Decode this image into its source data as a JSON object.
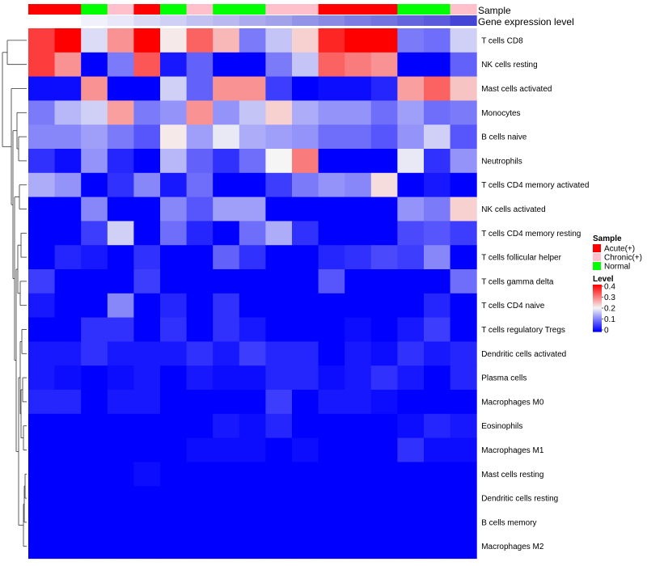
{
  "chart_data": {
    "type": "heatmap",
    "annotation_labels": {
      "sample": "Sample",
      "gene_level": "Gene expression level"
    },
    "sample_groups": [
      "Acute(+)",
      "Acute(+)",
      "Normal",
      "Chronic(+)",
      "Acute(+)",
      "Normal",
      "Chronic(+)",
      "Normal",
      "Normal",
      "Chronic(+)",
      "Chronic(+)",
      "Acute(+)",
      "Acute(+)",
      "Acute(+)",
      "Normal",
      "Normal",
      "Chronic(+)"
    ],
    "gene_expression_level": [
      0.0,
      0.0,
      0.03,
      0.05,
      0.08,
      0.1,
      0.13,
      0.15,
      0.18,
      0.2,
      0.23,
      0.25,
      0.28,
      0.3,
      0.33,
      0.35,
      0.4
    ],
    "rows": [
      "T cells CD8",
      "NK cells resting",
      "Mast cells activated",
      "Monocytes",
      "B cells naive",
      "Neutrophils",
      "T cells CD4 memory activated",
      "NK cells activated",
      "T cells CD4 memory resting",
      "T cells follicular helper",
      "T cells gamma delta",
      "T cells CD4 naive",
      "T cells regulatory  Tregs",
      "Dendritic cells activated",
      "Plasma cells",
      "Macrophages M0",
      "Eosinophils",
      "Macrophages M1",
      "Mast cells resting",
      "Dendritic cells resting",
      "B cells memory",
      "Macrophages M2"
    ],
    "values": [
      [
        0.35,
        0.4,
        0.18,
        0.28,
        0.4,
        0.21,
        0.32,
        0.25,
        0.1,
        0.16,
        0.23,
        0.37,
        0.4,
        0.4,
        0.1,
        0.09,
        0.17
      ],
      [
        0.35,
        0.28,
        0.0,
        0.1,
        0.33,
        0.02,
        0.08,
        0.0,
        0.0,
        0.1,
        0.16,
        0.32,
        0.3,
        0.28,
        0.0,
        0.0,
        0.08
      ],
      [
        0.01,
        0.01,
        0.28,
        0.0,
        0.0,
        0.17,
        0.08,
        0.28,
        0.28,
        0.05,
        0.0,
        0.01,
        0.01,
        0.03,
        0.27,
        0.32,
        0.24
      ],
      [
        0.1,
        0.15,
        0.17,
        0.27,
        0.1,
        0.12,
        0.28,
        0.12,
        0.16,
        0.23,
        0.14,
        0.12,
        0.12,
        0.09,
        0.13,
        0.09,
        0.1
      ],
      [
        0.11,
        0.11,
        0.13,
        0.1,
        0.07,
        0.21,
        0.13,
        0.19,
        0.14,
        0.13,
        0.12,
        0.09,
        0.09,
        0.07,
        0.12,
        0.17,
        0.07
      ],
      [
        0.04,
        0.01,
        0.12,
        0.03,
        0.0,
        0.15,
        0.08,
        0.04,
        0.09,
        0.2,
        0.3,
        0.0,
        0.0,
        0.0,
        0.19,
        0.04,
        0.12
      ],
      [
        0.14,
        0.12,
        0.0,
        0.04,
        0.11,
        0.02,
        0.09,
        0.0,
        0.0,
        0.05,
        0.1,
        0.12,
        0.11,
        0.22,
        0.0,
        0.02,
        0.0
      ],
      [
        0.0,
        0.0,
        0.11,
        0.0,
        0.0,
        0.11,
        0.07,
        0.13,
        0.13,
        0.0,
        0.0,
        0.0,
        0.0,
        0.0,
        0.12,
        0.1,
        0.23
      ],
      [
        0.0,
        0.0,
        0.05,
        0.17,
        0.0,
        0.09,
        0.03,
        0.0,
        0.09,
        0.14,
        0.04,
        0.0,
        0.0,
        0.0,
        0.06,
        0.07,
        0.05
      ],
      [
        0.0,
        0.03,
        0.02,
        0.0,
        0.04,
        0.0,
        0.0,
        0.08,
        0.04,
        0.0,
        0.0,
        0.03,
        0.04,
        0.06,
        0.05,
        0.11,
        0.0
      ],
      [
        0.05,
        0.0,
        0.0,
        0.0,
        0.05,
        0.0,
        0.0,
        0.0,
        0.0,
        0.0,
        0.0,
        0.07,
        0.0,
        0.0,
        0.0,
        0.0,
        0.09
      ],
      [
        0.02,
        0.0,
        0.0,
        0.11,
        0.0,
        0.03,
        0.0,
        0.04,
        0.0,
        0.0,
        0.0,
        0.0,
        0.0,
        0.0,
        0.0,
        0.03,
        0.0
      ],
      [
        0.0,
        0.0,
        0.04,
        0.04,
        0.0,
        0.04,
        0.0,
        0.04,
        0.02,
        0.0,
        0.0,
        0.0,
        0.01,
        0.0,
        0.02,
        0.05,
        0.0
      ],
      [
        0.02,
        0.02,
        0.04,
        0.02,
        0.02,
        0.02,
        0.04,
        0.02,
        0.05,
        0.03,
        0.03,
        0.0,
        0.02,
        0.01,
        0.04,
        0.02,
        0.03
      ],
      [
        0.02,
        0.01,
        0.0,
        0.01,
        0.02,
        0.0,
        0.02,
        0.01,
        0.01,
        0.03,
        0.03,
        0.01,
        0.02,
        0.04,
        0.02,
        0.0,
        0.03
      ],
      [
        0.03,
        0.03,
        0.0,
        0.02,
        0.02,
        0.0,
        0.0,
        0.0,
        0.0,
        0.05,
        0.0,
        0.02,
        0.02,
        0.01,
        0.0,
        0.0,
        0.0
      ],
      [
        0.0,
        0.0,
        0.0,
        0.0,
        0.0,
        0.0,
        0.0,
        0.02,
        0.01,
        0.03,
        0.0,
        0.0,
        0.0,
        0.0,
        0.01,
        0.03,
        0.02
      ],
      [
        0.0,
        0.0,
        0.0,
        0.0,
        0.0,
        0.0,
        0.01,
        0.01,
        0.01,
        0.0,
        0.01,
        0.0,
        0.0,
        0.0,
        0.04,
        0.01,
        0.01
      ],
      [
        0.0,
        0.0,
        0.0,
        0.0,
        0.01,
        0.0,
        0.0,
        0.0,
        0.0,
        0.0,
        0.0,
        0.0,
        0.0,
        0.0,
        0.0,
        0.0,
        0.0
      ],
      [
        0.0,
        0.0,
        0.0,
        0.0,
        0.0,
        0.0,
        0.0,
        0.0,
        0.0,
        0.0,
        0.0,
        0.0,
        0.0,
        0.0,
        0.0,
        0.0,
        0.0
      ],
      [
        0.0,
        0.0,
        0.0,
        0.0,
        0.0,
        0.0,
        0.0,
        0.0,
        0.0,
        0.0,
        0.0,
        0.0,
        0.0,
        0.0,
        0.0,
        0.0,
        0.0
      ],
      [
        0.0,
        0.0,
        0.0,
        0.0,
        0.0,
        0.0,
        0.0,
        0.0,
        0.0,
        0.0,
        0.0,
        0.0,
        0.0,
        0.0,
        0.0,
        0.0,
        0.0
      ]
    ],
    "dendrogram": true,
    "color_scale": {
      "min": 0,
      "mid": 0.2,
      "max": 0.4,
      "low": "#0000ff",
      "midcolor": "#f5f5f5",
      "high": "#ff0000"
    },
    "legend": {
      "sample_title": "Sample",
      "sample_items": [
        {
          "label": "Acute(+)",
          "color": "#ff0000"
        },
        {
          "label": "Chronic(+)",
          "color": "#ffc0cb"
        },
        {
          "label": "Normal",
          "color": "#00ff00"
        }
      ],
      "level_title": "Level",
      "level_ticks": [
        "0.4",
        "0.3",
        "0.2",
        "0.1",
        "0"
      ],
      "placement": "right"
    }
  }
}
